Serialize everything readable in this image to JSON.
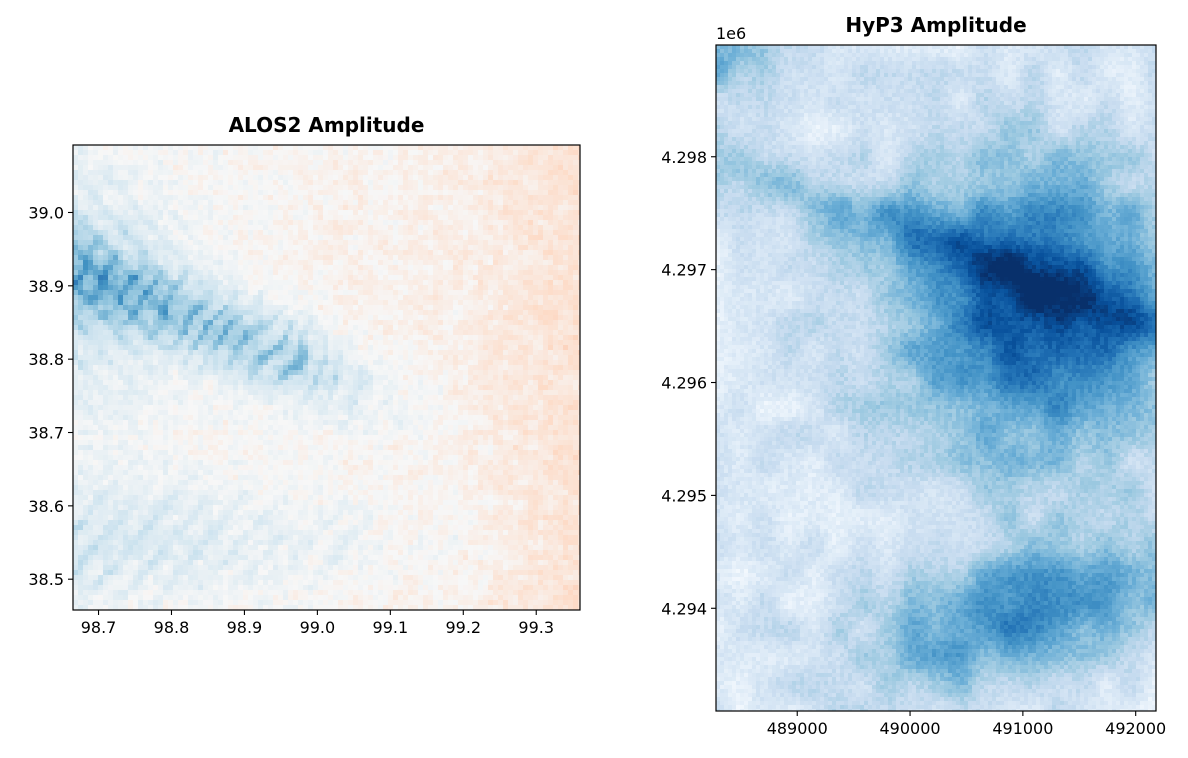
{
  "chart_data": [
    {
      "type": "heatmap",
      "title": "ALOS2 Amplitude",
      "colormap": "RdBu_r",
      "colormap_colors": [
        "#2166ac",
        "#4393c3",
        "#92c5de",
        "#d1e5f0",
        "#f7f7f7",
        "#fddbc7",
        "#f4a582",
        "#d6604d",
        "#b2182b"
      ],
      "xlim": [
        98.665,
        99.36
      ],
      "ylim": [
        38.458,
        39.092
      ],
      "xticks": [
        98.7,
        98.8,
        98.9,
        99.0,
        99.1,
        99.2,
        99.3
      ],
      "xtick_labels": [
        "98.7",
        "98.8",
        "98.9",
        "99.0",
        "99.1",
        "99.2",
        "99.3"
      ],
      "yticks": [
        38.5,
        38.6,
        38.7,
        38.8,
        38.9,
        39.0
      ],
      "ytick_labels": [
        "38.5",
        "38.6",
        "38.7",
        "38.8",
        "38.9",
        "39.0"
      ],
      "xlabel": "",
      "ylabel": ""
    },
    {
      "type": "heatmap",
      "title": "HyP3 Amplitude",
      "colormap": "Blues",
      "colormap_colors": [
        "#f7fbff",
        "#deebf7",
        "#c6dbef",
        "#9ecae1",
        "#6baed6",
        "#4292c6",
        "#2171b5",
        "#08519c",
        "#08306b"
      ],
      "xlim": [
        488280,
        492180
      ],
      "ylim": [
        4293090,
        4298990
      ],
      "xticks": [
        489000,
        490000,
        491000,
        492000
      ],
      "xtick_labels": [
        "489000",
        "490000",
        "491000",
        "492000"
      ],
      "yticks": [
        4294000,
        4295000,
        4296000,
        4297000,
        4298000
      ],
      "ytick_labels": [
        "4.294",
        "4.295",
        "4.296",
        "4.297",
        "4.298"
      ],
      "y_offset_label": "1e6",
      "xlabel": "",
      "ylabel": ""
    }
  ]
}
